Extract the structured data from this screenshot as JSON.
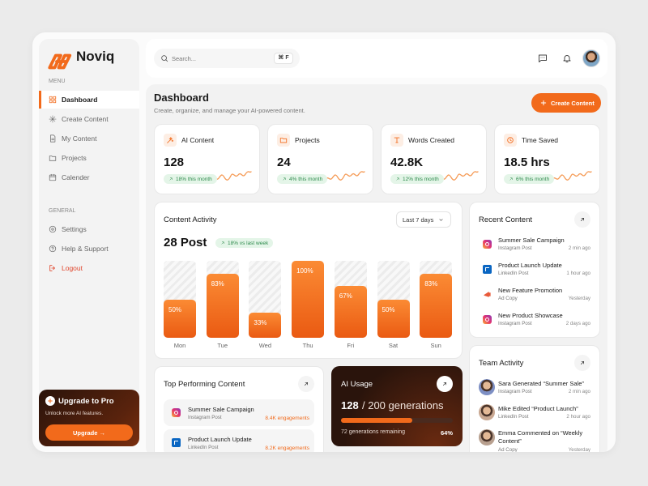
{
  "brand": "Noviq",
  "search": {
    "placeholder": "Search...",
    "shortcut": "⌘ F"
  },
  "sidebar": {
    "menu_label": "MENU",
    "menu": [
      "Dashboard",
      "Create Content",
      "My Content",
      "Projects",
      "Calender"
    ],
    "general_label": "GENERAL",
    "general": [
      "Settings",
      "Help & Support",
      "Logout"
    ],
    "upgrade": {
      "title": "Upgrade to Pro",
      "text": "Unlock more AI features.",
      "button": "Upgrade →"
    }
  },
  "header": {
    "title": "Dashboard",
    "subtitle": "Create, organize, and manage your AI-powered content.",
    "button": "Create Content"
  },
  "stats": [
    {
      "label": "AI Content",
      "value": "128",
      "change": "18% this month"
    },
    {
      "label": "Projects",
      "value": "24",
      "change": "4% this month"
    },
    {
      "label": "Words Created",
      "value": "42.8K",
      "change": "12% this month"
    },
    {
      "label": "Time Saved",
      "value": "18.5 hrs",
      "change": "6% this month"
    }
  ],
  "activity": {
    "title": "Content Activity",
    "filter": "Last 7 days",
    "total": "28 Post",
    "change": "18% vs last week",
    "categories": [
      "Mon",
      "Tue",
      "Wed",
      "Thu",
      "Fri",
      "Sat",
      "Sun"
    ],
    "values": [
      50,
      83,
      33,
      100,
      67,
      50,
      83
    ],
    "value_labels": [
      "50%",
      "83%",
      "33%",
      "100%",
      "67%",
      "50%",
      "83%"
    ],
    "ylim": [
      0,
      100
    ]
  },
  "recent": {
    "title": "Recent Content",
    "items": [
      {
        "title": "Summer Sale Campaign",
        "type": "Instagram Post",
        "time": "2 min ago"
      },
      {
        "title": "Product Launch Update",
        "type": "LinkedIn Post",
        "time": "1 hour ago"
      },
      {
        "title": "New Feature Promotion",
        "type": "Ad Copy",
        "time": "Yesterday"
      },
      {
        "title": "New Product Showcase",
        "type": "Instagram Post",
        "time": "2 days ago"
      }
    ]
  },
  "team": {
    "title": "Team Activity",
    "items": [
      {
        "text": "Sara Generated “Summer Sale”",
        "type": "Instagram Post",
        "time": "2 min ago"
      },
      {
        "text": "Mike Edited “Product Launch”",
        "type": "LinkedIn Post",
        "time": "2 hour ago"
      },
      {
        "text": "Emma Commented on “Weekly Content”",
        "type": "Ad Copy",
        "time": "Yesterday"
      }
    ]
  },
  "top": {
    "title": "Top Performing Content",
    "items": [
      {
        "title": "Summer Sale Campaign",
        "type": "Instagram Post",
        "metric": "8.4K engagements"
      },
      {
        "title": "Product Launch Update",
        "type": "LinkedIn Post",
        "metric": "8.2K engagements"
      }
    ]
  },
  "ai_usage": {
    "title": "AI Usage",
    "used": "128",
    "rest": "/ 200 generations",
    "remaining": "72 generations remaining",
    "progress": {
      "value": 64,
      "label": "64%"
    }
  }
}
